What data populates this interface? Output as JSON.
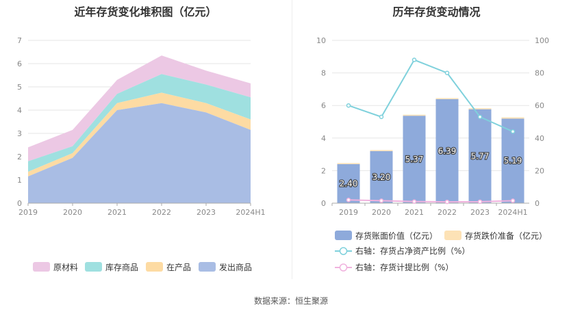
{
  "colors": {
    "raw": "#ecc8e4",
    "stock": "#9fe0e0",
    "wip": "#fddba3",
    "shipped": "#a9bde4",
    "bar": "#8eaadb",
    "bar_impair": "#fde2b6",
    "line_ratio": "#7fd1dc",
    "line_prov": "#f0b2de"
  },
  "source_text": "数据来源：恒生聚源",
  "chart_data": [
    {
      "type": "area",
      "stacked": true,
      "title": "近年存货变化堆积图（亿元）",
      "categories": [
        "2019",
        "2020",
        "2021",
        "2022",
        "2023",
        "2024H1"
      ],
      "ylim": [
        0,
        7
      ],
      "yticks": [
        0,
        1,
        2,
        3,
        4,
        5,
        6,
        7
      ],
      "grid": true,
      "legend_position": "bottom",
      "series": [
        {
          "name": "原材料",
          "color": "#ecc8e4",
          "values": [
            0.6,
            0.7,
            0.6,
            0.8,
            0.6,
            0.6
          ]
        },
        {
          "name": "库存商品",
          "color": "#9fe0e0",
          "values": [
            0.45,
            0.3,
            0.4,
            0.8,
            0.8,
            0.95
          ]
        },
        {
          "name": "在产品",
          "color": "#fddba3",
          "values": [
            0.2,
            0.2,
            0.3,
            0.45,
            0.4,
            0.45
          ]
        },
        {
          "name": "发出商品",
          "color": "#a9bde4",
          "values": [
            1.15,
            1.95,
            4.0,
            4.3,
            3.9,
            3.15
          ]
        }
      ]
    },
    {
      "type": "bar",
      "title": "历年存货变动情况",
      "categories": [
        "2019",
        "2020",
        "2021",
        "2022",
        "2023",
        "2024H1"
      ],
      "ylim": [
        0,
        10
      ],
      "yticks": [
        0,
        2,
        4,
        6,
        8,
        10
      ],
      "y2lim": [
        0,
        100
      ],
      "y2ticks": [
        0,
        20,
        40,
        60,
        80,
        100
      ],
      "grid": true,
      "legend_position": "bottom",
      "series": [
        {
          "name": "存货账面价值（亿元）",
          "kind": "bar",
          "axis": "left",
          "color": "#8eaadb",
          "values": [
            2.4,
            3.2,
            5.37,
            6.39,
            5.77,
            5.19
          ],
          "labels": [
            "2.40",
            "3.20",
            "5.37",
            "6.39",
            "5.77",
            "5.19"
          ]
        },
        {
          "name": "存货跌价准备（亿元）",
          "kind": "bar",
          "axis": "left",
          "color": "#fde2b6",
          "values": [
            0.05,
            0.05,
            0.05,
            0.05,
            0.05,
            0.08
          ]
        },
        {
          "name": "右轴：存货占净资产比例（%）",
          "kind": "line",
          "axis": "right",
          "color": "#7fd1dc",
          "values": [
            60,
            53,
            88,
            80,
            53,
            44
          ]
        },
        {
          "name": "右轴：存货计提比例（%）",
          "kind": "line",
          "axis": "right",
          "color": "#f0b2de",
          "values": [
            2,
            1.5,
            1,
            0.8,
            0.9,
            1.5
          ]
        }
      ]
    }
  ]
}
